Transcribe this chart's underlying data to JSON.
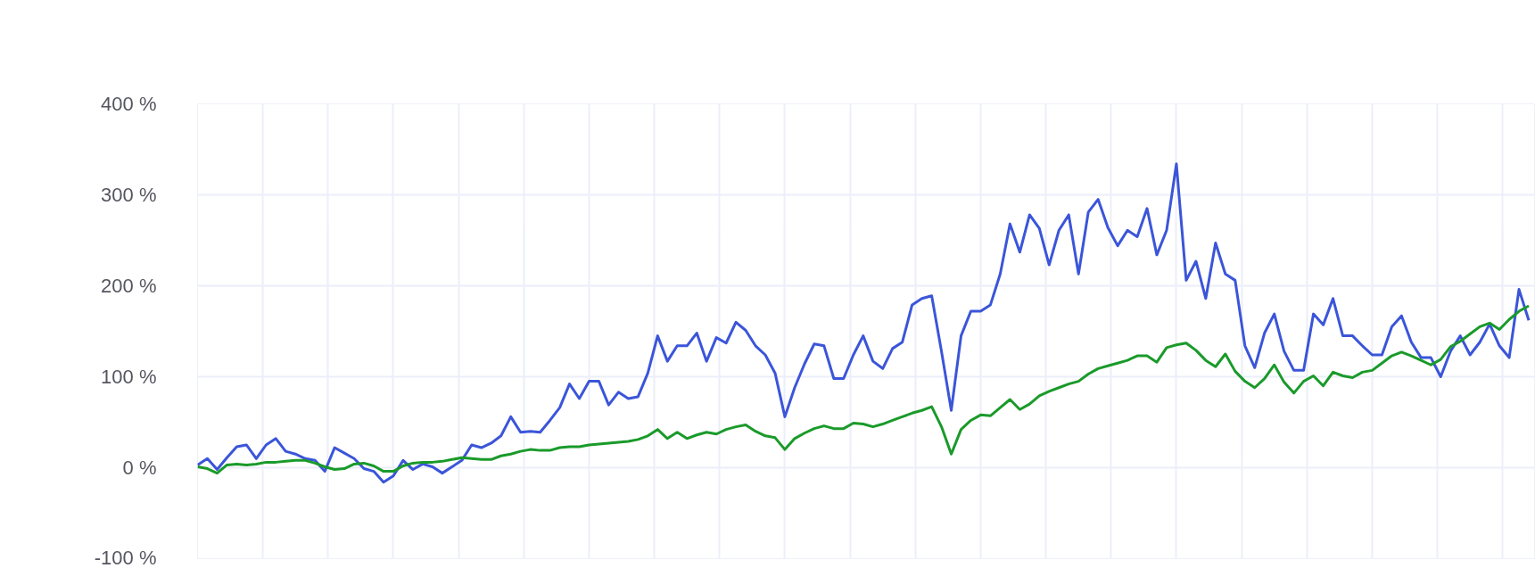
{
  "chart_data": {
    "type": "line",
    "categories": [
      null,
      null,
      null,
      null,
      null,
      null,
      null,
      null,
      null,
      null,
      null,
      null,
      null,
      null,
      null,
      null,
      null,
      null,
      null,
      null,
      null,
      null,
      null,
      null,
      null,
      null,
      null,
      null,
      null,
      null,
      null,
      null,
      null,
      null,
      null,
      null,
      null,
      null,
      null,
      null,
      null,
      null,
      null,
      null,
      null,
      null,
      null,
      null,
      null,
      null,
      null,
      null,
      null,
      null,
      null,
      null,
      null,
      null,
      null,
      null,
      null,
      null,
      null,
      null,
      null,
      null,
      null,
      null,
      null,
      null,
      null,
      null,
      null,
      null,
      null,
      null,
      null,
      null,
      null,
      null,
      null,
      null,
      null,
      null,
      null,
      null,
      null,
      null,
      null,
      null,
      null,
      null,
      null,
      null,
      null,
      null,
      null,
      null,
      null,
      null,
      null,
      null,
      null,
      null,
      null,
      null,
      null,
      null,
      null,
      null,
      null,
      null,
      null,
      null,
      null,
      null,
      null,
      null,
      null,
      null,
      null,
      null,
      null,
      null,
      null,
      null,
      null,
      null,
      null,
      null,
      null,
      null,
      null,
      null,
      null,
      null,
      null
    ],
    "ylim": [
      -100,
      400
    ],
    "yticks": [
      {
        "value": -100,
        "label": "-100 %"
      },
      {
        "value": 0,
        "label": "0 %"
      },
      {
        "value": 100,
        "label": "100 %"
      },
      {
        "value": 200,
        "label": "200 %"
      },
      {
        "value": 300,
        "label": "300 %"
      },
      {
        "value": 400,
        "label": "400 %"
      }
    ],
    "tick_labels": "y",
    "grid": true,
    "line_style": "solid",
    "series": [
      {
        "color": "#3b55d9",
        "values": [
          3,
          10,
          -2,
          11,
          23,
          25,
          10,
          25,
          32,
          18,
          15,
          10,
          8,
          -4,
          22,
          16,
          10,
          -1,
          -4,
          -16,
          -9,
          8,
          -2,
          4,
          1,
          -6,
          1,
          8,
          25,
          22,
          27,
          35,
          56,
          39,
          40,
          39,
          52,
          66,
          92,
          76,
          95,
          95,
          69,
          83,
          76,
          78,
          104,
          145,
          117,
          134,
          134,
          148,
          117,
          143,
          137,
          160,
          151,
          134,
          124,
          104,
          56,
          88,
          114,
          136,
          134,
          98,
          98,
          124,
          145,
          117,
          109,
          131,
          138,
          179,
          186,
          189,
          128,
          63,
          145,
          172,
          172,
          179,
          213,
          268,
          237,
          278,
          263,
          223,
          261,
          278,
          213,
          281,
          295,
          264,
          244,
          261,
          254,
          285,
          234,
          261,
          334,
          206,
          227,
          186,
          247,
          213,
          206,
          134,
          110,
          148,
          169,
          128,
          107,
          107,
          169,
          157,
          186,
          145,
          145,
          134,
          124,
          124,
          155,
          167,
          138,
          121,
          121,
          100,
          128,
          145,
          124,
          138,
          158,
          134,
          121,
          196,
          162
        ]
      },
      {
        "color": "#1a9a2a",
        "values": [
          1,
          -1,
          -6,
          3,
          4,
          3,
          4,
          6,
          6,
          7,
          8,
          8,
          5,
          1,
          -2,
          -1,
          4,
          5,
          2,
          -4,
          -4,
          2,
          5,
          6,
          6,
          7,
          9,
          11,
          10,
          9,
          9,
          13,
          15,
          18,
          20,
          19,
          19,
          22,
          23,
          23,
          25,
          26,
          27,
          28,
          29,
          31,
          35,
          42,
          32,
          39,
          32,
          36,
          39,
          37,
          42,
          45,
          47,
          40,
          35,
          33,
          20,
          32,
          38,
          43,
          46,
          43,
          43,
          49,
          48,
          45,
          48,
          52,
          56,
          60,
          63,
          67,
          45,
          15,
          42,
          52,
          58,
          57,
          66,
          75,
          64,
          70,
          79,
          84,
          88,
          92,
          95,
          103,
          109,
          112,
          115,
          118,
          123,
          123,
          116,
          132,
          135,
          137,
          129,
          118,
          111,
          125,
          106,
          95,
          88,
          98,
          113,
          94,
          82,
          95,
          101,
          90,
          105,
          101,
          99,
          105,
          107,
          115,
          123,
          127,
          123,
          118,
          113,
          119,
          133,
          139,
          147,
          155,
          159,
          152,
          163,
          172,
          178
        ]
      }
    ]
  }
}
